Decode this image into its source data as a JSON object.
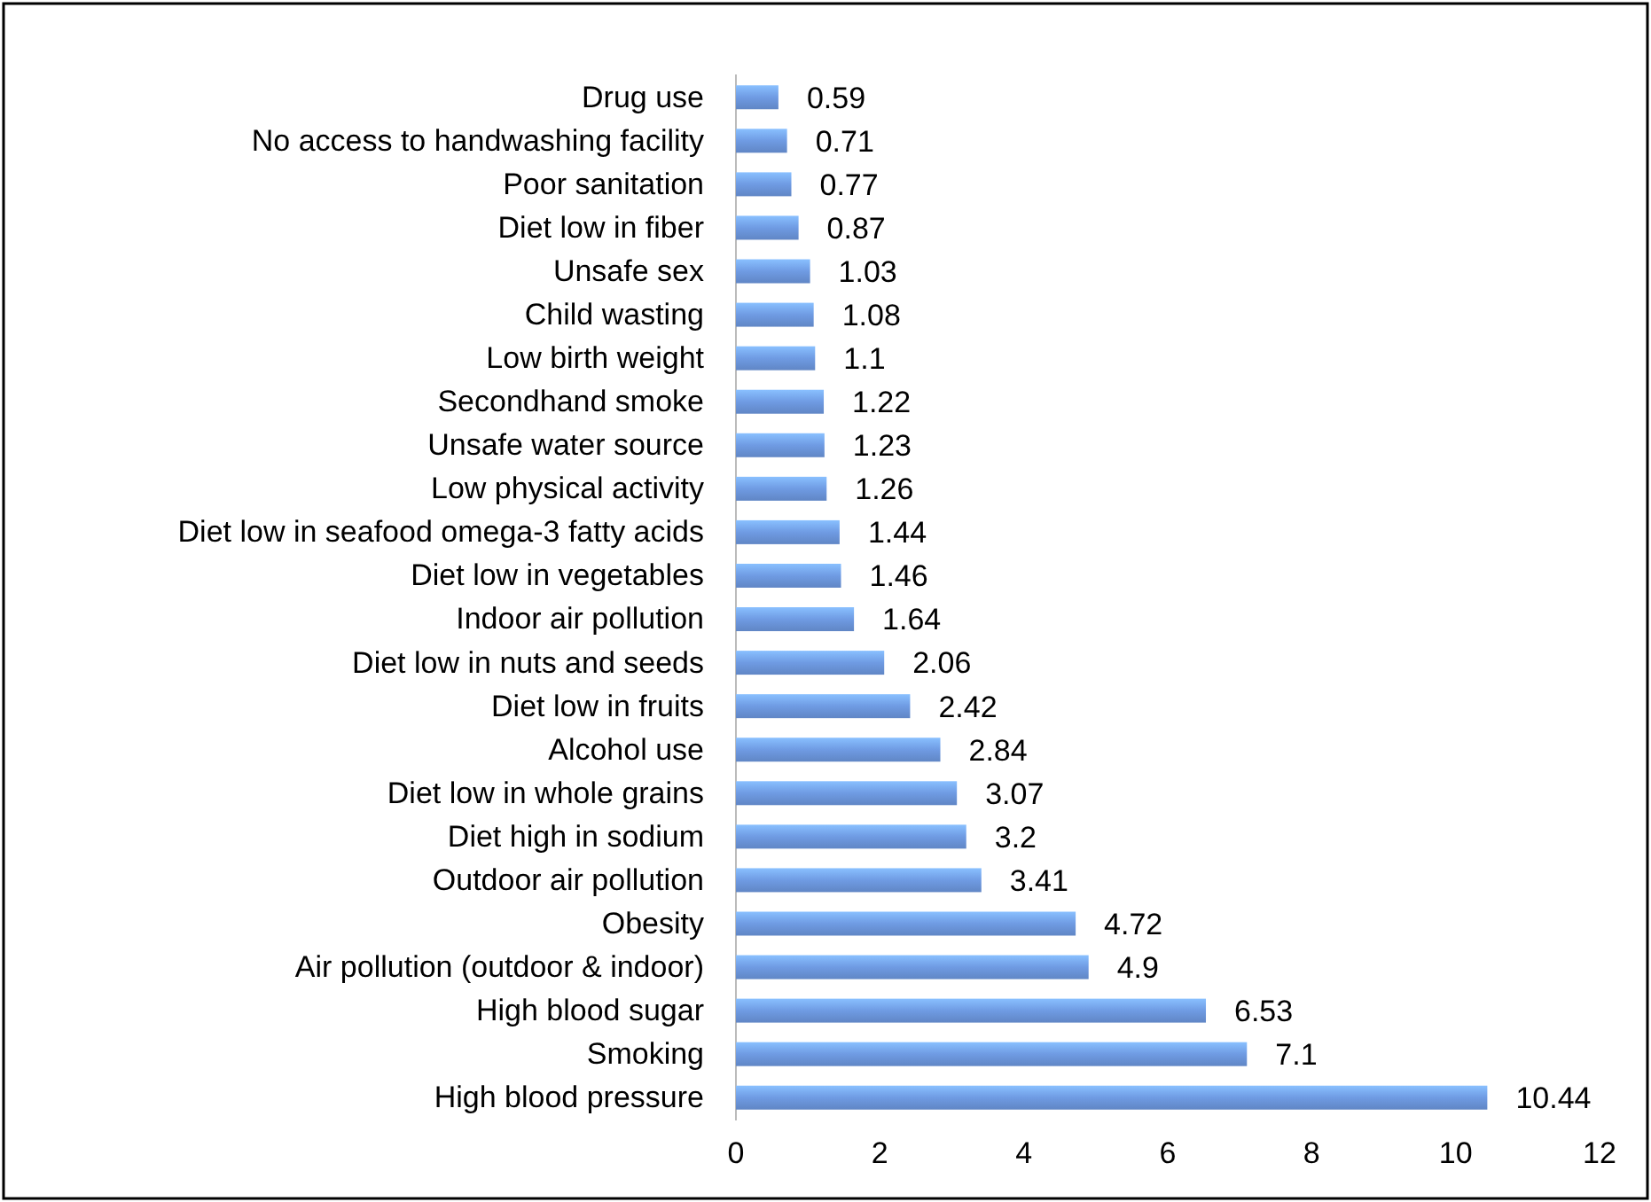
{
  "chart_data": {
    "type": "bar",
    "orientation": "horizontal",
    "data_labels": true,
    "grid": false,
    "color": "#6f9be3",
    "categories": [
      "Drug use",
      "No access to handwashing facility",
      "Poor sanitation",
      "Diet low in fiber",
      "Unsafe sex",
      "Child wasting",
      "Low birth weight",
      "Secondhand smoke",
      "Unsafe water source",
      "Low physical activity",
      "Diet low in seafood omega-3 fatty acids",
      "Diet low in vegetables",
      "Indoor air pollution",
      "Diet low in nuts and seeds",
      "Diet low in fruits",
      "Alcohol use",
      "Diet low in whole grains",
      "Diet high in sodium",
      "Outdoor air pollution",
      "Obesity",
      "Air pollution (outdoor & indoor)",
      "High blood sugar",
      "Smoking",
      "High blood pressure"
    ],
    "values": [
      0.59,
      0.71,
      0.77,
      0.87,
      1.03,
      1.08,
      1.1,
      1.22,
      1.23,
      1.26,
      1.44,
      1.46,
      1.64,
      2.06,
      2.42,
      2.84,
      3.07,
      3.2,
      3.41,
      4.72,
      4.9,
      6.53,
      7.1,
      10.44
    ],
    "xlim": [
      0,
      12
    ],
    "xticks": [
      0,
      2,
      4,
      6,
      8,
      10,
      12
    ]
  }
}
